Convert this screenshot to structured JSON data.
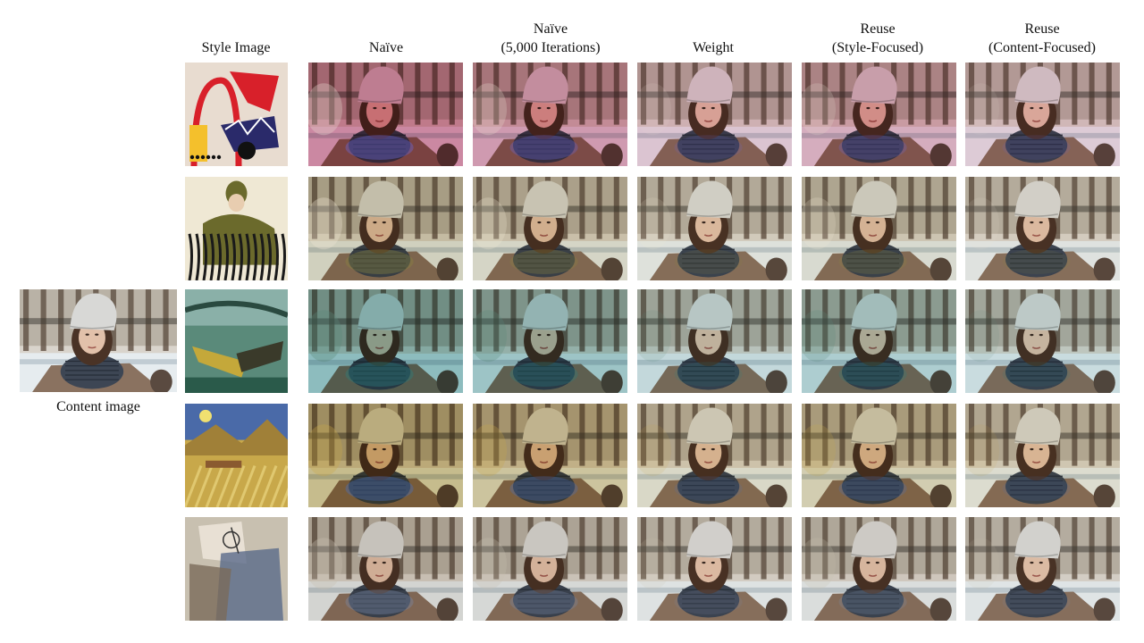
{
  "headers": [
    [
      "Style Image"
    ],
    [
      "Naïve"
    ],
    [
      "Naïve",
      "(5,000 Iterations)"
    ],
    [
      "Weight"
    ],
    [
      "Reuse",
      "(Style-Focused)"
    ],
    [
      "Reuse",
      "(Content-Focused)"
    ]
  ],
  "content_label": "Content image",
  "styles": [
    {
      "name": "abstract",
      "bg": "#e8dcd0",
      "a": "#d8202a",
      "b": "#2a2a6a",
      "c": "#f4c02c",
      "tint": "#c83a6a",
      "tint2": "#6a6ae0"
    },
    {
      "name": "figure-stripes",
      "bg": "#efe8d4",
      "a": "#6b6a2c",
      "b": "#1a1a1a",
      "c": "#b0a06a",
      "tint": "#d4c8a0",
      "tint2": "#8a8440"
    },
    {
      "name": "boats",
      "bg": "#5a8a7a",
      "a": "#2a5a4a",
      "b": "#c4a83a",
      "c": "#8ab0a8",
      "tint": "#4aa0a0",
      "tint2": "#2a8080"
    },
    {
      "name": "landscape",
      "bg": "#c8a84a",
      "a": "#4a6aa8",
      "b": "#a08038",
      "c": "#e0c870",
      "tint": "#c0a040",
      "tint2": "#4a70c0"
    },
    {
      "name": "cubist",
      "bg": "#c8c0b0",
      "a": "#5a6a8a",
      "b": "#7a6a5a",
      "c": "#e8e0d4",
      "tint": "#d8d0c4",
      "tint2": "#7a8aa8"
    }
  ],
  "method_strength": [
    0.55,
    0.45,
    0.22,
    0.35,
    0.18
  ]
}
